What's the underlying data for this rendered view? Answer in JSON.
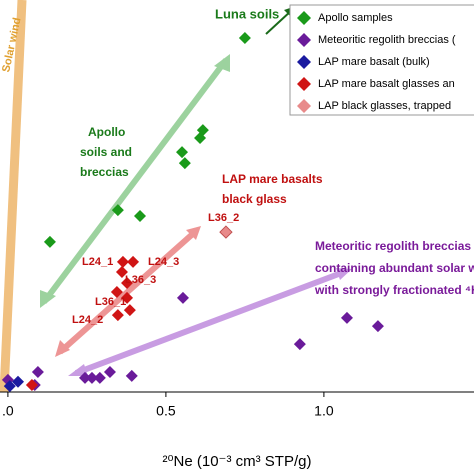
{
  "chart_data": {
    "type": "scatter",
    "x_label": "²⁰Ne (10⁻³ cm³ STP/g)",
    "xlim": [
      -0.025,
      1.475
    ],
    "ylim": [
      0,
      100
    ],
    "xticks": [
      {
        "value": 0,
        "label": ".0"
      },
      0.5,
      {
        "value": 1,
        "label": "1.0"
      }
    ],
    "series": [
      {
        "name": "Apollo samples",
        "color": "#1a9a1a",
        "x": [
          0.75,
          0.617,
          0.608,
          0.551,
          0.56,
          0.418,
          0.348,
          0.133
        ],
        "values": [
          90.3,
          66.8,
          64.8,
          61.2,
          58.4,
          44.9,
          46.4,
          38.3
        ]
      },
      {
        "name": "Meteoritic regolith breccias (",
        "color": "#6a1b9a",
        "x": [
          0.554,
          0.924,
          1.073,
          1.171,
          0.392,
          0.323,
          0.291,
          0.266,
          0.244,
          0.095,
          0.085,
          0
        ],
        "values": [
          24.0,
          12.2,
          18.9,
          16.8,
          4.1,
          5.1,
          3.6,
          3.6,
          3.6,
          5.1,
          1.8,
          3.1
        ]
      },
      {
        "name": "LAP mare basalt (bulk)",
        "color": "#1a1aa0",
        "x": [
          0.032,
          0.006
        ],
        "values": [
          2.6,
          1.5
        ]
      },
      {
        "name": "LAP mare basalt glasses an",
        "color": "#d01515",
        "x": [
          0.364,
          0.396,
          0.361,
          0.377,
          0.345,
          0.377,
          0.348,
          0.386,
          0.076
        ],
        "values": [
          33.2,
          33.2,
          30.6,
          27.8,
          25.5,
          24.0,
          19.6,
          20.9,
          1.8
        ]
      },
      {
        "name": "LAP black glasses, trapped",
        "color": "#e88a8a",
        "x": [
          0.69
        ],
        "values": [
          40.8
        ]
      }
    ],
    "annotations": [
      {
        "text": "Luna soils",
        "color": "#1a7a1a"
      },
      {
        "text": "Apollo",
        "color": "#1a7a1a"
      },
      {
        "text": "soils and",
        "color": "#1a7a1a"
      },
      {
        "text": "breccias",
        "color": "#1a7a1a"
      },
      {
        "text": "LAP mare basalts",
        "color": "#c01010"
      },
      {
        "text": "black glass",
        "color": "#c01010"
      },
      {
        "text": "L36_2",
        "color": "#c01010"
      },
      {
        "text": "L24_1",
        "color": "#c01010"
      },
      {
        "text": "L24_3",
        "color": "#c01010"
      },
      {
        "text": "L36_3",
        "color": "#c01010"
      },
      {
        "text": "L36_1",
        "color": "#c01010"
      },
      {
        "text": "L24_2",
        "color": "#c01010"
      },
      {
        "text": "Meteoritic regolith breccias",
        "color": "#7a1a9a"
      },
      {
        "text": "containing abundant solar w",
        "color": "#7a1a9a"
      },
      {
        "text": "with strongly fractionated ⁴H",
        "color": "#7a1a9a"
      },
      {
        "text": "Solar wind",
        "color": "#e0a030"
      }
    ]
  }
}
